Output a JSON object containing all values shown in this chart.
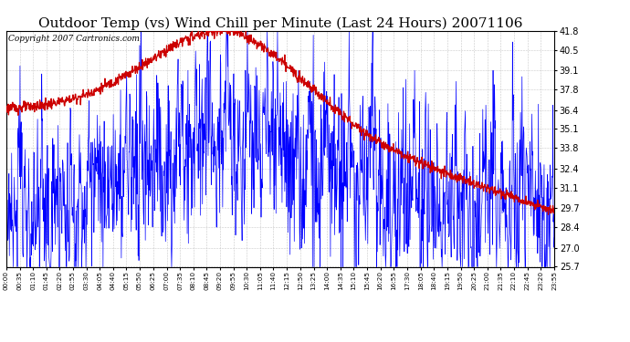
{
  "title": "Outdoor Temp (vs) Wind Chill per Minute (Last 24 Hours) 20071106",
  "copyright": "Copyright 2007 Cartronics.com",
  "ylim": [
    25.7,
    41.8
  ],
  "yticks": [
    25.7,
    27.0,
    28.4,
    29.7,
    31.1,
    32.4,
    33.8,
    35.1,
    36.4,
    37.8,
    39.1,
    40.5,
    41.8
  ],
  "x_labels": [
    "00:00",
    "00:35",
    "01:10",
    "01:45",
    "02:20",
    "02:55",
    "03:30",
    "04:05",
    "04:40",
    "05:15",
    "05:50",
    "06:25",
    "07:00",
    "07:35",
    "08:10",
    "08:45",
    "09:20",
    "09:55",
    "10:30",
    "11:05",
    "11:40",
    "12:15",
    "12:50",
    "13:25",
    "14:00",
    "14:35",
    "15:10",
    "15:45",
    "16:20",
    "16:55",
    "17:30",
    "18:05",
    "18:40",
    "19:15",
    "19:50",
    "20:25",
    "21:00",
    "21:35",
    "22:10",
    "22:45",
    "23:20",
    "23:55"
  ],
  "blue_color": "#0000FF",
  "red_color": "#CC0000",
  "bg_color": "#FFFFFF",
  "grid_color": "#BBBBBB",
  "title_fontsize": 11,
  "copyright_fontsize": 6.5,
  "figwidth": 6.9,
  "figheight": 3.75,
  "dpi": 100
}
